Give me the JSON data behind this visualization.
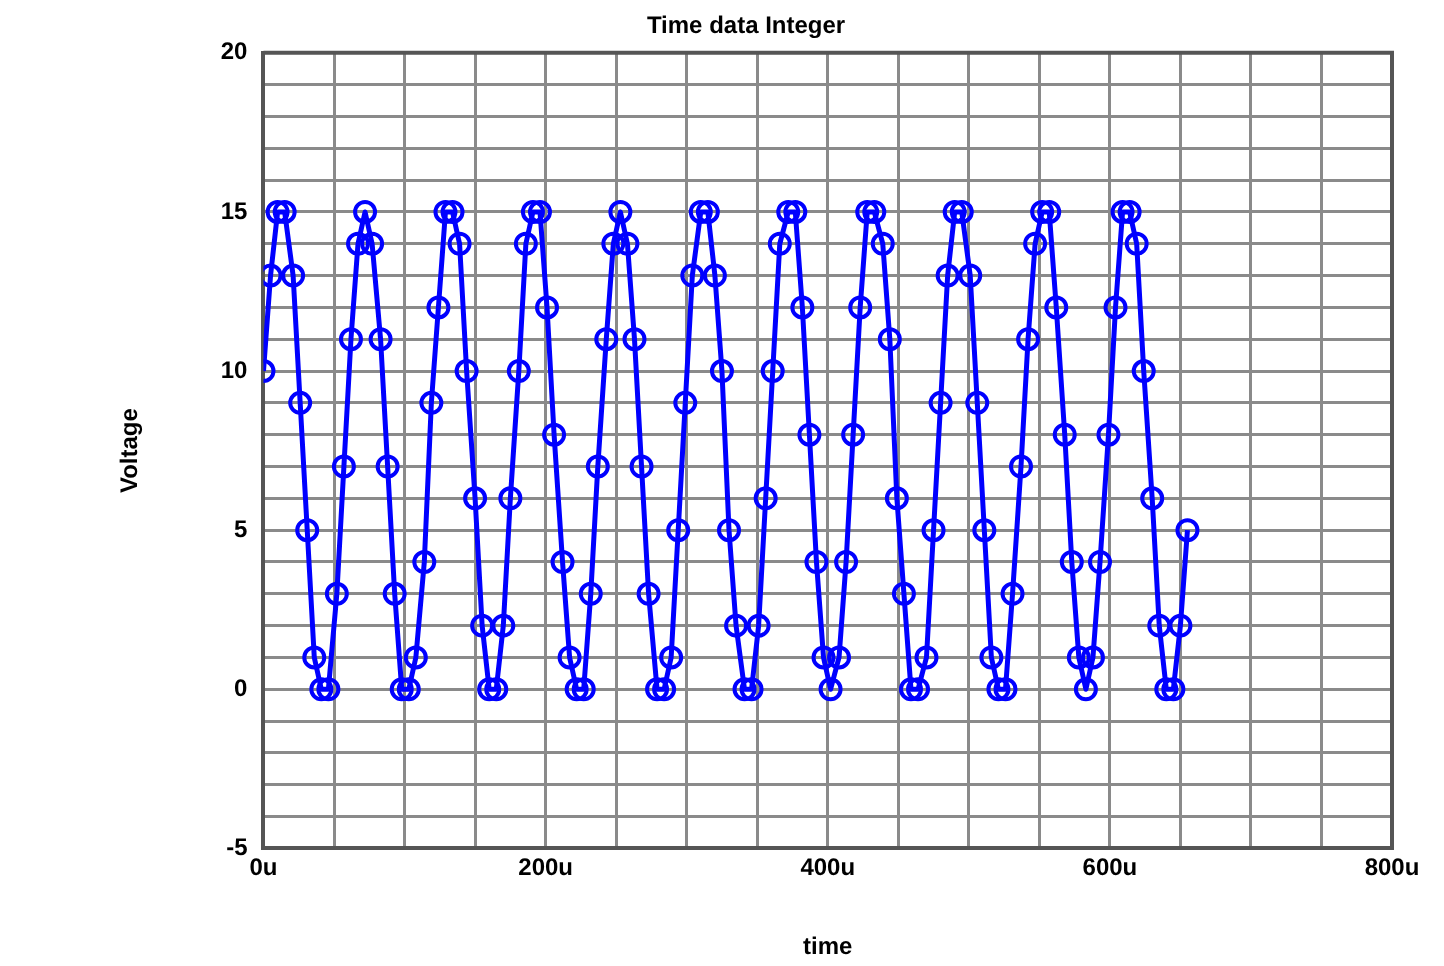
{
  "chart_data": {
    "type": "line",
    "title": "Time data Integer",
    "xlabel": "time",
    "ylabel": "Voltage",
    "x": [
      0,
      5,
      10,
      15,
      21,
      26,
      31,
      36,
      41,
      46,
      52,
      57,
      62,
      67,
      72,
      77,
      83,
      88,
      93,
      98,
      103,
      108,
      114,
      119,
      124,
      129,
      134,
      139,
      144,
      150,
      155,
      160,
      165,
      170,
      175,
      181,
      186,
      191,
      196,
      201,
      206,
      212,
      217,
      222,
      227,
      232,
      237,
      243,
      248,
      253,
      258,
      263,
      268,
      273,
      279,
      284,
      289,
      294,
      299,
      304,
      310,
      315,
      320,
      325,
      330,
      335,
      341,
      346,
      351,
      356,
      361,
      366,
      372,
      377,
      382,
      387,
      392,
      397,
      402,
      408,
      413,
      418,
      423,
      428,
      433,
      439,
      444,
      449,
      454,
      459,
      464,
      470,
      475,
      480,
      485,
      490,
      495,
      501,
      506,
      511,
      516,
      521,
      526,
      531,
      537,
      542,
      547,
      552,
      557,
      562,
      568,
      573,
      578,
      583,
      588,
      593,
      599,
      604,
      609,
      614,
      619,
      624,
      630,
      635,
      640,
      645,
      650,
      655
    ],
    "series": [
      {
        "color": "#0000ff",
        "values": [
          10,
          13,
          15,
          15,
          13,
          9,
          5,
          1,
          0,
          0,
          3,
          7,
          11,
          14,
          15,
          14,
          11,
          7,
          3,
          0,
          0,
          1,
          4,
          9,
          12,
          15,
          15,
          14,
          10,
          6,
          2,
          0,
          0,
          2,
          6,
          10,
          14,
          15,
          15,
          12,
          8,
          4,
          1,
          0,
          0,
          3,
          7,
          11,
          14,
          15,
          14,
          11,
          7,
          3,
          0,
          0,
          1,
          5,
          9,
          13,
          15,
          15,
          13,
          10,
          5,
          2,
          0,
          0,
          2,
          6,
          10,
          14,
          15,
          15,
          12,
          8,
          4,
          1,
          0,
          1,
          4,
          8,
          12,
          15,
          15,
          14,
          11,
          6,
          3,
          0,
          0,
          1,
          5,
          9,
          13,
          15,
          15,
          13,
          9,
          5,
          1,
          0,
          0,
          3,
          7,
          11,
          14,
          15,
          15,
          12,
          8,
          4,
          1,
          0,
          1,
          4,
          8,
          12,
          15,
          15,
          14,
          10,
          6,
          2,
          0,
          0,
          2,
          5
        ]
      }
    ],
    "xlim": [
      0,
      800
    ],
    "xticks": [
      {
        "value": 0,
        "label": "0u"
      },
      {
        "value": 50,
        "label": null
      },
      {
        "value": 100,
        "label": null
      },
      {
        "value": 150,
        "label": null
      },
      {
        "value": 200,
        "label": "200u"
      },
      {
        "value": 250,
        "label": null
      },
      {
        "value": 300,
        "label": null
      },
      {
        "value": 350,
        "label": null
      },
      {
        "value": 400,
        "label": "400u"
      },
      {
        "value": 450,
        "label": null
      },
      {
        "value": 500,
        "label": null
      },
      {
        "value": 550,
        "label": null
      },
      {
        "value": 600,
        "label": "600u"
      },
      {
        "value": 650,
        "label": null
      },
      {
        "value": 700,
        "label": null
      },
      {
        "value": 750,
        "label": null
      },
      {
        "value": 800,
        "label": "800u"
      }
    ],
    "ylim": [
      -5,
      20
    ],
    "yticks": [
      -5,
      {
        "value": -4,
        "label": null
      },
      {
        "value": -3,
        "label": null
      },
      {
        "value": -2,
        "label": null
      },
      {
        "value": -1,
        "label": null
      },
      0,
      {
        "value": 1,
        "label": null
      },
      {
        "value": 2,
        "label": null
      },
      {
        "value": 3,
        "label": null
      },
      {
        "value": 4,
        "label": null
      },
      5,
      {
        "value": 6,
        "label": null
      },
      {
        "value": 7,
        "label": null
      },
      {
        "value": 8,
        "label": null
      },
      {
        "value": 9,
        "label": null
      },
      10,
      {
        "value": 11,
        "label": null
      },
      {
        "value": 12,
        "label": null
      },
      {
        "value": 13,
        "label": null
      },
      {
        "value": 14,
        "label": null
      },
      15,
      {
        "value": 16,
        "label": null
      },
      {
        "value": 17,
        "label": null
      },
      {
        "value": 18,
        "label": null
      },
      {
        "value": 19,
        "label": null
      },
      20
    ],
    "grid": true,
    "legend": false,
    "marker": "circle",
    "line_style": "solid"
  }
}
